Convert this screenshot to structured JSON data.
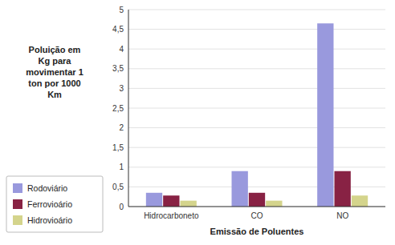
{
  "chart_data": {
    "type": "bar",
    "categories": [
      "Hidrocarboneto",
      "CO",
      "NO"
    ],
    "series": [
      {
        "name": "Rodoviário",
        "color": "#9999dd",
        "values": [
          0.35,
          0.9,
          4.65
        ]
      },
      {
        "name": "Ferrovioário",
        "color": "#882244",
        "values": [
          0.28,
          0.35,
          0.9
        ]
      },
      {
        "name": "Hidrovioário",
        "color": "#d4d48c",
        "values": [
          0.15,
          0.15,
          0.28
        ]
      }
    ],
    "xlabel": "Emissão de Poluentes",
    "ylabel": "Poluição em\nKg para\nmovimentar 1\nton por 1000\nKm",
    "ylim": [
      0,
      5
    ],
    "yticks": [
      0,
      {
        "value": 0.5,
        "label": "0,5"
      },
      1,
      {
        "value": 1.5,
        "label": "1,5"
      },
      2,
      {
        "value": 2.5,
        "label": "2,5"
      },
      3,
      {
        "value": 3.5,
        "label": "3,5"
      },
      4,
      {
        "value": 4.5,
        "label": "4,5"
      },
      5
    ],
    "grid": true,
    "legend": "lower left"
  }
}
